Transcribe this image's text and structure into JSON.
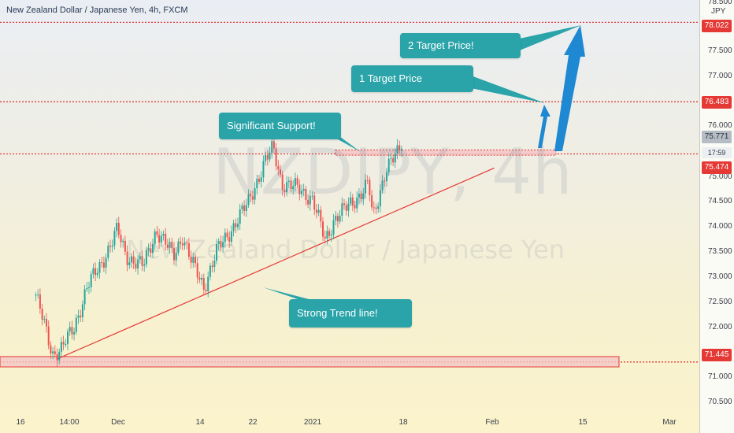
{
  "header": {
    "title": "New Zealand Dollar / Japanese Yen, 4h, FXCM"
  },
  "watermark": {
    "big": "NZDJPY, 4h",
    "sub": "New Zealand Dollar / Japanese Yen"
  },
  "price_axis": {
    "unit": "JPY",
    "ticks": [
      "78.500",
      "77.500",
      "77.000",
      "76.000",
      "75.000",
      "74.500",
      "74.000",
      "73.500",
      "73.000",
      "72.500",
      "72.000",
      "71.000",
      "70.500"
    ],
    "badges": {
      "level_78_022": "78.022",
      "level_76_483": "76.483",
      "current_price": "75.771",
      "countdown": "17:59",
      "level_75_474": "75.474",
      "level_71_445": "71.445"
    }
  },
  "time_axis": {
    "labels": [
      "16",
      "14:00",
      "Dec",
      "14",
      "22",
      "2021",
      "18",
      "Feb",
      "15",
      "Mar"
    ]
  },
  "callouts": {
    "target2": "2 Target Price!",
    "target1": "1 Target Price",
    "support": "Significant Support!",
    "trendline": "Strong Trend line!"
  },
  "colors": {
    "bull": "#26a69a",
    "bear": "#ef5350",
    "level": "#e53935",
    "arrow": "#1e88d2",
    "callout": "#2aa4a9",
    "zone_fill": "#f2c6c6"
  },
  "chart_data": {
    "type": "candlestick",
    "symbol": "NZDJPY",
    "timeframe": "4h",
    "source": "FXCM",
    "y_range": [
      70.4,
      78.5
    ],
    "horizontal_levels": [
      78.022,
      76.483,
      75.474,
      71.445
    ],
    "current_price": 75.771,
    "support_zone": [
      75.45,
      75.55
    ],
    "bottom_zone": [
      71.35,
      71.55
    ],
    "trendline": {
      "start": [
        "Nov 17",
        71.5
      ],
      "end": [
        "Feb 26",
        75.2
      ]
    },
    "price_path": [
      [
        "Nov 12",
        72.8
      ],
      [
        "Nov 16",
        71.6
      ],
      [
        "Nov 18",
        71.7
      ],
      [
        "Nov 21",
        72.1
      ],
      [
        "Nov 24",
        72.9
      ],
      [
        "Nov 27",
        73.3
      ],
      [
        "Dec 1",
        74.0
      ],
      [
        "Dec 3",
        73.5
      ],
      [
        "Dec 7",
        73.3
      ],
      [
        "Dec 10",
        74.0
      ],
      [
        "Dec 14",
        73.5
      ],
      [
        "Dec 16",
        73.9
      ],
      [
        "Dec 18",
        73.4
      ],
      [
        "Dec 21",
        72.9
      ],
      [
        "Dec 24",
        73.6
      ],
      [
        "Dec 28",
        74.1
      ],
      [
        "Dec 31",
        74.5
      ],
      [
        "Jan 4",
        75.3
      ],
      [
        "Jan 6",
        75.6
      ],
      [
        "Jan 8",
        74.9
      ],
      [
        "Jan 12",
        74.8
      ],
      [
        "Jan 15",
        74.6
      ],
      [
        "Jan 18",
        73.8
      ],
      [
        "Jan 20",
        74.2
      ],
      [
        "Jan 25",
        74.6
      ],
      [
        "Jan 28",
        74.9
      ],
      [
        "Jan 29",
        74.2
      ],
      [
        "Feb 1",
        75.2
      ],
      [
        "Feb 4",
        75.5
      ],
      [
        "Feb 5",
        75.8
      ]
    ]
  }
}
